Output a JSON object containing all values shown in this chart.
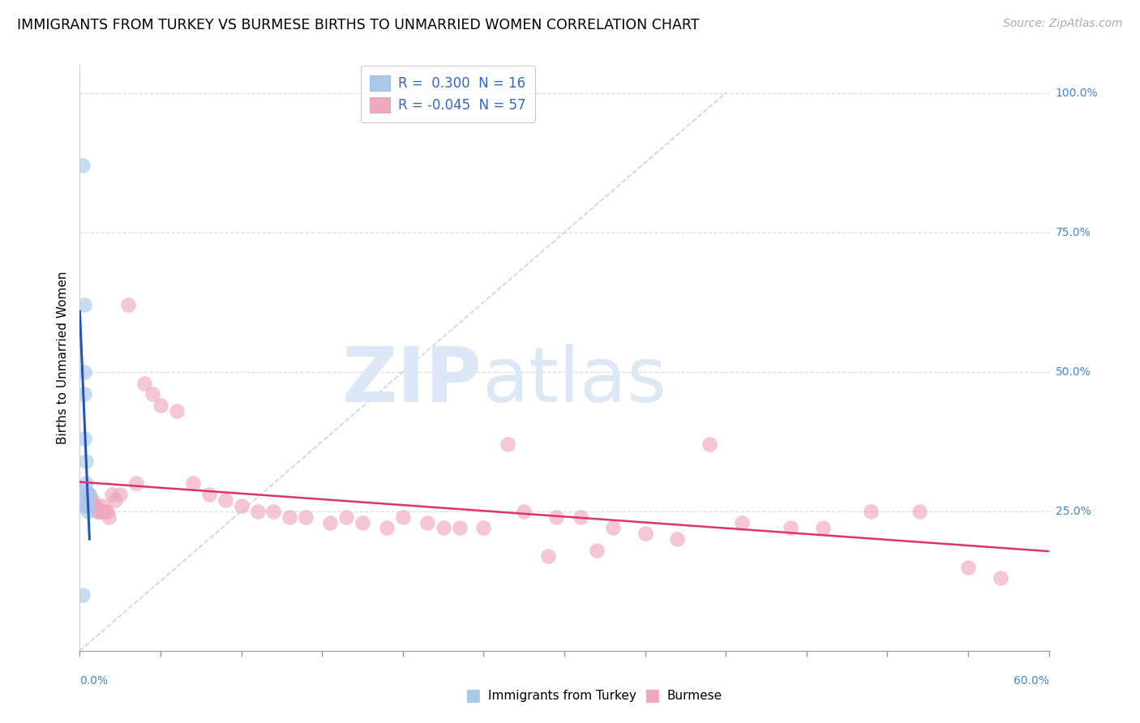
{
  "title": "IMMIGRANTS FROM TURKEY VS BURMESE BIRTHS TO UNMARRIED WOMEN CORRELATION CHART",
  "source": "Source: ZipAtlas.com",
  "ylabel": "Births to Unmarried Women",
  "xlim": [
    0.0,
    0.6
  ],
  "ylim": [
    0.0,
    1.05
  ],
  "ytick_vals": [
    0.25,
    0.5,
    0.75,
    1.0
  ],
  "ytick_labels": [
    "25.0%",
    "50.0%",
    "75.0%",
    "100.0%"
  ],
  "xtick_left": "0.0%",
  "xtick_right": "60.0%",
  "legend_r_turkey": " 0.300",
  "legend_n_turkey": "16",
  "legend_r_burmese": "-0.045",
  "legend_n_burmese": "57",
  "turkey_face_color": "#aac8ea",
  "burmese_face_color": "#f0a8bc",
  "turkey_line_color": "#2255bb",
  "burmese_line_color": "#e03366",
  "diagonal_line_color": "#c0d0e8",
  "legend_text_color": "#3366cc",
  "right_label_color": "#4488cc",
  "grid_color": "#dddddd",
  "watermark_zip": "ZIP",
  "watermark_atlas": "atlas",
  "watermark_color": "#dce8f5",
  "turkey_x": [
    0.002,
    0.002,
    0.003,
    0.003,
    0.003,
    0.003,
    0.003,
    0.003,
    0.004,
    0.004,
    0.004,
    0.004,
    0.005,
    0.005,
    0.005,
    0.006
  ],
  "turkey_y": [
    0.87,
    0.1,
    0.62,
    0.5,
    0.46,
    0.38,
    0.29,
    0.26,
    0.34,
    0.3,
    0.28,
    0.26,
    0.27,
    0.26,
    0.25,
    0.28
  ],
  "burmese_x": [
    0.005,
    0.006,
    0.007,
    0.008,
    0.009,
    0.01,
    0.011,
    0.012,
    0.013,
    0.014,
    0.015,
    0.016,
    0.017,
    0.018,
    0.02,
    0.022,
    0.025,
    0.03,
    0.035,
    0.04,
    0.045,
    0.05,
    0.06,
    0.07,
    0.08,
    0.09,
    0.1,
    0.11,
    0.12,
    0.13,
    0.14,
    0.155,
    0.165,
    0.175,
    0.19,
    0.2,
    0.215,
    0.225,
    0.235,
    0.25,
    0.265,
    0.275,
    0.295,
    0.31,
    0.33,
    0.35,
    0.37,
    0.39,
    0.41,
    0.44,
    0.46,
    0.49,
    0.52,
    0.55,
    0.57,
    0.29,
    0.32
  ],
  "burmese_y": [
    0.28,
    0.28,
    0.27,
    0.27,
    0.26,
    0.26,
    0.25,
    0.25,
    0.25,
    0.26,
    0.25,
    0.25,
    0.25,
    0.24,
    0.28,
    0.27,
    0.28,
    0.62,
    0.3,
    0.48,
    0.46,
    0.44,
    0.43,
    0.3,
    0.28,
    0.27,
    0.26,
    0.25,
    0.25,
    0.24,
    0.24,
    0.23,
    0.24,
    0.23,
    0.22,
    0.24,
    0.23,
    0.22,
    0.22,
    0.22,
    0.37,
    0.25,
    0.24,
    0.24,
    0.22,
    0.21,
    0.2,
    0.37,
    0.23,
    0.22,
    0.22,
    0.25,
    0.25,
    0.15,
    0.13,
    0.17,
    0.18
  ]
}
